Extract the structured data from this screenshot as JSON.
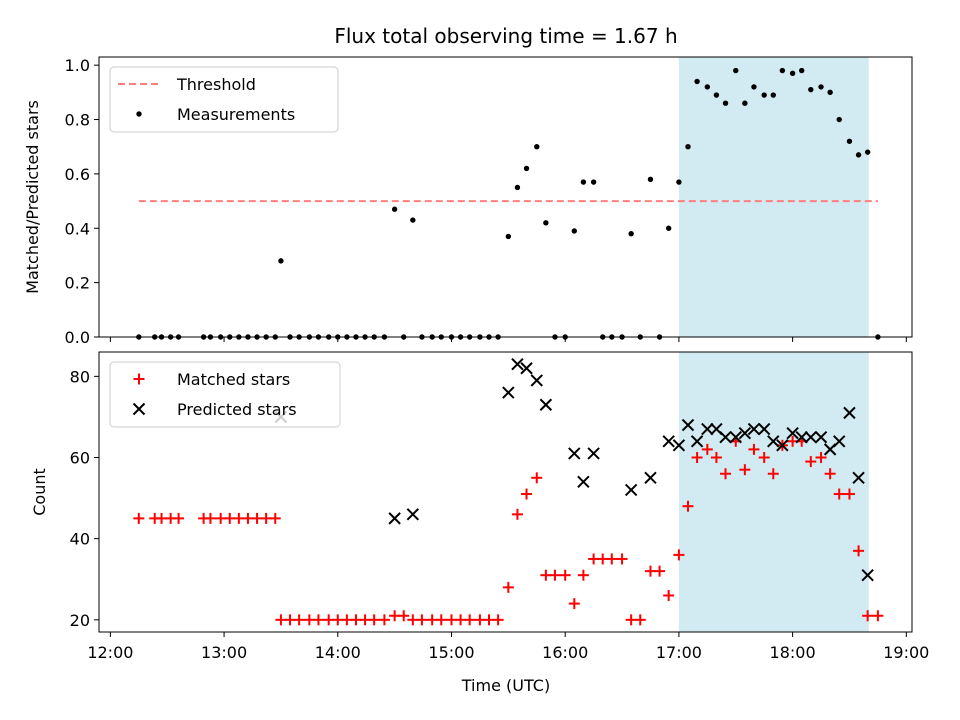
{
  "figure": {
    "title": "Flux total observing time = 1.67 h",
    "xlabel": "Time (UTC)",
    "xticks": [
      "12:00",
      "13:00",
      "14:00",
      "15:00",
      "16:00",
      "17:00",
      "18:00",
      "19:00"
    ],
    "colors": {
      "threshold": "#ff7f7f",
      "measurements": "#000000",
      "matched": "#ff0000",
      "predicted": "#000000",
      "shade": "#add8e6"
    }
  },
  "chart_data": [
    {
      "type": "scatter",
      "ylabel": "Matched/Predicted stars",
      "xlim": [
        11.9,
        19.05
      ],
      "ylim": [
        0,
        1.03
      ],
      "yticks": [
        0.0,
        0.2,
        0.4,
        0.6,
        0.8,
        1.0
      ],
      "ytick_labels": [
        "0.0",
        "0.2",
        "0.4",
        "0.6",
        "0.8",
        "1.0"
      ],
      "legend": {
        "position": "upper-left",
        "entries": [
          "Threshold",
          "Measurements"
        ]
      },
      "shaded_region": [
        17.0,
        18.67
      ],
      "threshold": {
        "name": "Threshold",
        "value": 0.5,
        "x_range": [
          12.25,
          18.75
        ]
      },
      "series": [
        {
          "name": "Measurements",
          "marker": "dot",
          "points": [
            [
              12.25,
              0.0
            ],
            [
              12.39,
              0.0
            ],
            [
              12.45,
              0.0
            ],
            [
              12.53,
              0.0
            ],
            [
              12.6,
              0.0
            ],
            [
              12.82,
              0.0
            ],
            [
              12.88,
              0.0
            ],
            [
              12.97,
              0.0
            ],
            [
              13.05,
              0.0
            ],
            [
              13.13,
              0.0
            ],
            [
              13.21,
              0.0
            ],
            [
              13.29,
              0.0
            ],
            [
              13.37,
              0.0
            ],
            [
              13.45,
              0.0
            ],
            [
              13.5,
              0.28
            ],
            [
              13.58,
              0.0
            ],
            [
              13.66,
              0.0
            ],
            [
              13.75,
              0.0
            ],
            [
              13.83,
              0.0
            ],
            [
              13.92,
              0.0
            ],
            [
              14.0,
              0.0
            ],
            [
              14.08,
              0.0
            ],
            [
              14.16,
              0.0
            ],
            [
              14.24,
              0.0
            ],
            [
              14.32,
              0.0
            ],
            [
              14.41,
              0.0
            ],
            [
              14.5,
              0.47
            ],
            [
              14.58,
              0.0
            ],
            [
              14.66,
              0.43
            ],
            [
              14.74,
              0.0
            ],
            [
              14.83,
              0.0
            ],
            [
              14.91,
              0.0
            ],
            [
              15.0,
              0.0
            ],
            [
              15.08,
              0.0
            ],
            [
              15.16,
              0.0
            ],
            [
              15.25,
              0.0
            ],
            [
              15.33,
              0.0
            ],
            [
              15.41,
              0.0
            ],
            [
              15.5,
              0.37
            ],
            [
              15.58,
              0.55
            ],
            [
              15.66,
              0.62
            ],
            [
              15.75,
              0.7
            ],
            [
              15.83,
              0.42
            ],
            [
              15.91,
              0.0
            ],
            [
              16.0,
              0.0
            ],
            [
              16.08,
              0.39
            ],
            [
              16.16,
              0.57
            ],
            [
              16.25,
              0.57
            ],
            [
              16.33,
              0.0
            ],
            [
              16.41,
              0.0
            ],
            [
              16.5,
              0.0
            ],
            [
              16.58,
              0.38
            ],
            [
              16.66,
              0.0
            ],
            [
              16.75,
              0.58
            ],
            [
              16.83,
              0.0
            ],
            [
              16.91,
              0.4
            ],
            [
              17.0,
              0.57
            ],
            [
              17.08,
              0.7
            ],
            [
              17.16,
              0.94
            ],
            [
              17.25,
              0.92
            ],
            [
              17.33,
              0.89
            ],
            [
              17.41,
              0.86
            ],
            [
              17.5,
              0.98
            ],
            [
              17.58,
              0.86
            ],
            [
              17.66,
              0.92
            ],
            [
              17.75,
              0.89
            ],
            [
              17.83,
              0.89
            ],
            [
              17.91,
              0.98
            ],
            [
              18.0,
              0.97
            ],
            [
              18.08,
              0.98
            ],
            [
              18.16,
              0.91
            ],
            [
              18.25,
              0.92
            ],
            [
              18.33,
              0.9
            ],
            [
              18.41,
              0.8
            ],
            [
              18.5,
              0.72
            ],
            [
              18.58,
              0.67
            ],
            [
              18.66,
              0.68
            ],
            [
              18.75,
              0.0
            ]
          ]
        }
      ]
    },
    {
      "type": "scatter",
      "ylabel": "Count",
      "xlim": [
        11.9,
        19.05
      ],
      "ylim": [
        17,
        86
      ],
      "yticks": [
        20,
        40,
        60,
        80
      ],
      "ytick_labels": [
        "20",
        "40",
        "60",
        "80"
      ],
      "legend": {
        "position": "upper-left",
        "entries": [
          "Matched stars",
          "Predicted stars"
        ]
      },
      "shaded_region": [
        17.0,
        18.67
      ],
      "series": [
        {
          "name": "Matched stars",
          "marker": "plus",
          "points": [
            [
              12.25,
              45
            ],
            [
              12.39,
              45
            ],
            [
              12.45,
              45
            ],
            [
              12.53,
              45
            ],
            [
              12.6,
              45
            ],
            [
              12.82,
              45
            ],
            [
              12.88,
              45
            ],
            [
              12.97,
              45
            ],
            [
              13.05,
              45
            ],
            [
              13.13,
              45
            ],
            [
              13.21,
              45
            ],
            [
              13.29,
              45
            ],
            [
              13.37,
              45
            ],
            [
              13.45,
              45
            ],
            [
              13.5,
              20
            ],
            [
              13.58,
              20
            ],
            [
              13.66,
              20
            ],
            [
              13.75,
              20
            ],
            [
              13.83,
              20
            ],
            [
              13.92,
              20
            ],
            [
              14.0,
              20
            ],
            [
              14.08,
              20
            ],
            [
              14.16,
              20
            ],
            [
              14.24,
              20
            ],
            [
              14.32,
              20
            ],
            [
              14.41,
              20
            ],
            [
              14.5,
              21
            ],
            [
              14.58,
              21
            ],
            [
              14.66,
              20
            ],
            [
              14.74,
              20
            ],
            [
              14.83,
              20
            ],
            [
              14.91,
              20
            ],
            [
              15.0,
              20
            ],
            [
              15.08,
              20
            ],
            [
              15.16,
              20
            ],
            [
              15.25,
              20
            ],
            [
              15.33,
              20
            ],
            [
              15.41,
              20
            ],
            [
              15.5,
              28
            ],
            [
              15.58,
              46
            ],
            [
              15.66,
              51
            ],
            [
              15.75,
              55
            ],
            [
              15.83,
              31
            ],
            [
              15.91,
              31
            ],
            [
              16.0,
              31
            ],
            [
              16.08,
              24
            ],
            [
              16.16,
              31
            ],
            [
              16.25,
              35
            ],
            [
              16.33,
              35
            ],
            [
              16.41,
              35
            ],
            [
              16.5,
              35
            ],
            [
              16.58,
              20
            ],
            [
              16.66,
              20
            ],
            [
              16.75,
              32
            ],
            [
              16.83,
              32
            ],
            [
              16.91,
              26
            ],
            [
              17.0,
              36
            ],
            [
              17.08,
              48
            ],
            [
              17.16,
              60
            ],
            [
              17.25,
              62
            ],
            [
              17.33,
              60
            ],
            [
              17.41,
              56
            ],
            [
              17.5,
              64
            ],
            [
              17.58,
              57
            ],
            [
              17.66,
              62
            ],
            [
              17.75,
              60
            ],
            [
              17.83,
              56
            ],
            [
              17.91,
              63
            ],
            [
              18.0,
              64
            ],
            [
              18.08,
              64
            ],
            [
              18.16,
              59
            ],
            [
              18.25,
              60
            ],
            [
              18.33,
              56
            ],
            [
              18.41,
              51
            ],
            [
              18.5,
              51
            ],
            [
              18.58,
              37
            ],
            [
              18.66,
              21
            ],
            [
              18.75,
              21
            ]
          ]
        },
        {
          "name": "Predicted stars",
          "marker": "x",
          "points": [
            [
              13.5,
              70
            ],
            [
              14.5,
              45
            ],
            [
              14.66,
              46
            ],
            [
              15.5,
              76
            ],
            [
              15.58,
              83
            ],
            [
              15.66,
              82
            ],
            [
              15.75,
              79
            ],
            [
              15.83,
              73
            ],
            [
              16.08,
              61
            ],
            [
              16.16,
              54
            ],
            [
              16.25,
              61
            ],
            [
              16.58,
              52
            ],
            [
              16.75,
              55
            ],
            [
              16.91,
              64
            ],
            [
              17.0,
              63
            ],
            [
              17.08,
              68
            ],
            [
              17.16,
              64
            ],
            [
              17.25,
              67
            ],
            [
              17.33,
              67
            ],
            [
              17.41,
              65
            ],
            [
              17.5,
              65
            ],
            [
              17.58,
              66
            ],
            [
              17.66,
              67
            ],
            [
              17.75,
              67
            ],
            [
              17.83,
              64
            ],
            [
              17.91,
              63
            ],
            [
              18.0,
              66
            ],
            [
              18.08,
              65
            ],
            [
              18.16,
              65
            ],
            [
              18.25,
              65
            ],
            [
              18.33,
              62
            ],
            [
              18.41,
              64
            ],
            [
              18.5,
              71
            ],
            [
              18.58,
              55
            ],
            [
              18.66,
              31
            ]
          ]
        }
      ]
    }
  ]
}
